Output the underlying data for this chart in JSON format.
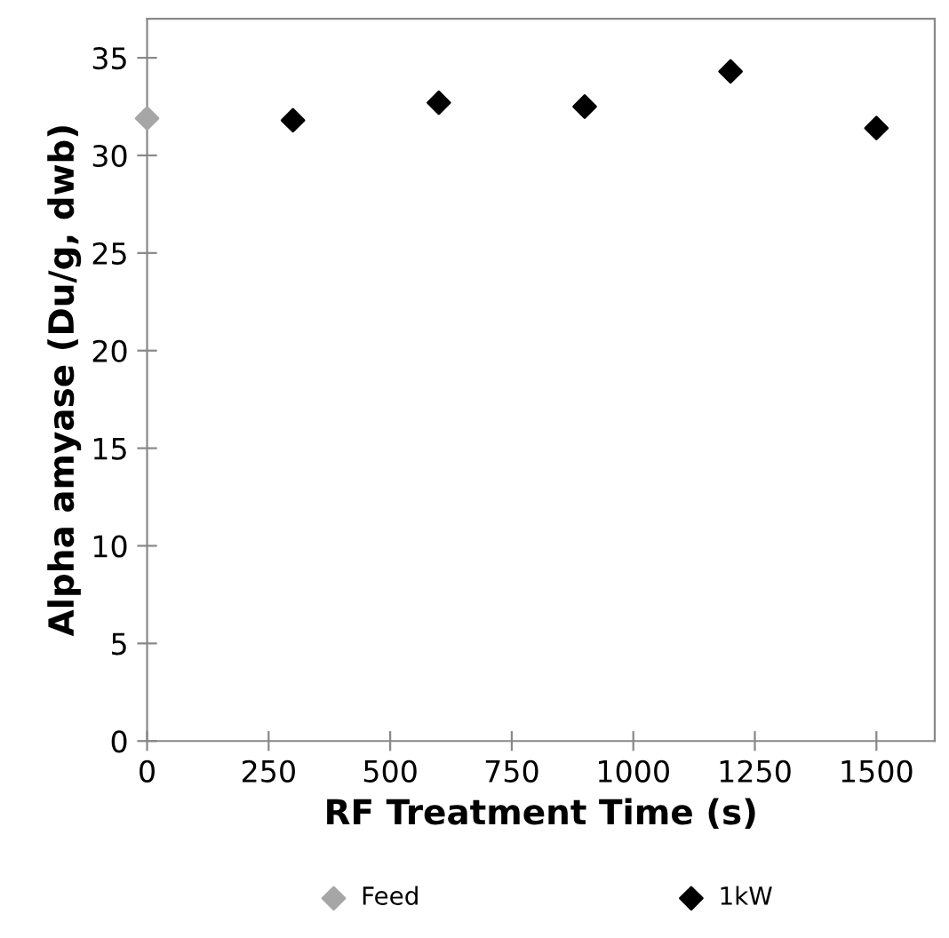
{
  "chart_data": {
    "type": "scatter",
    "xlabel": "RF Treatment Time (s)",
    "ylabel": "Alpha amyase (Du/g, dwb)",
    "xlim": [
      0,
      1620
    ],
    "xticks": [
      0,
      250,
      500,
      750,
      1000,
      1250,
      1500
    ],
    "ylim": [
      0,
      37
    ],
    "yticks": [
      0,
      5,
      10,
      15,
      20,
      25,
      30,
      35
    ],
    "marker": "diamond",
    "grid": false,
    "legend": "bottom",
    "series": [
      {
        "name": "Feed",
        "color": "#a6a6a6",
        "x": [
          0
        ],
        "values": [
          31.9
        ]
      },
      {
        "name": "1kW",
        "color": "#000000",
        "x": [
          300,
          600,
          900,
          1200,
          1500
        ],
        "values": [
          31.8,
          32.7,
          32.5,
          34.3,
          31.4
        ]
      }
    ]
  }
}
